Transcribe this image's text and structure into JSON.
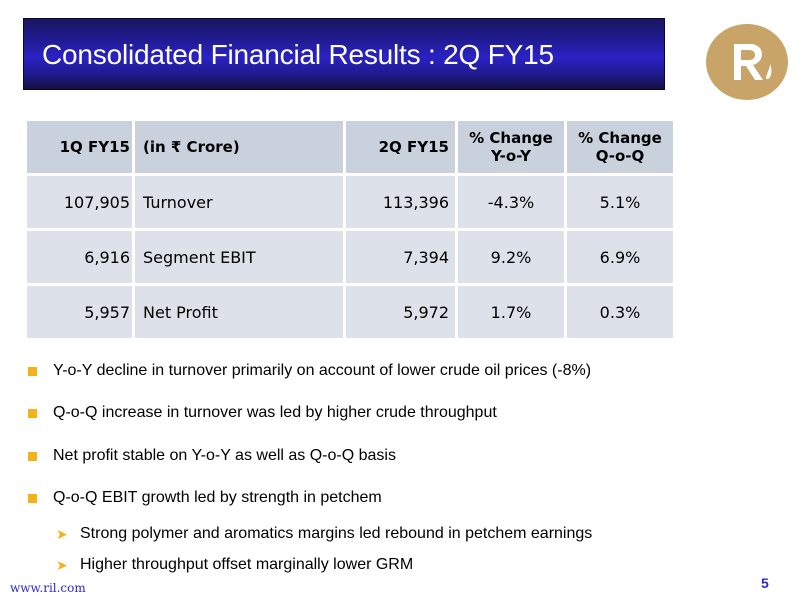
{
  "title": "Consolidated Financial Results : 2Q FY15",
  "logo": {
    "icon": "ril-logo-icon",
    "color": "#c8a468"
  },
  "table": {
    "headers": {
      "col1": "1Q FY15",
      "col2": "(in ₹ Crore)",
      "col3": "2Q FY15",
      "col4_line1": "% Change",
      "col4_line2": "Y-o-Y",
      "col5_line1": "% Change",
      "col5_line2": "Q-o-Q"
    },
    "rows": [
      {
        "q1": "107,905",
        "label": "Turnover",
        "q2": "113,396",
        "yoy": "-4.3%",
        "qoq": "5.1%"
      },
      {
        "q1": "6,916",
        "label": "Segment EBIT",
        "q2": "7,394",
        "yoy": "9.2%",
        "qoq": "6.9%"
      },
      {
        "q1": "5,957",
        "label": "Net Profit",
        "q2": "5,972",
        "yoy": "1.7%",
        "qoq": "0.3%"
      }
    ]
  },
  "bullets": [
    "Y-o-Y decline in turnover primarily on account of lower crude oil prices (-8%)",
    "Q-o-Q increase in turnover was led by higher crude throughput",
    "Net profit stable on Y-o-Y as well as Q-o-Q basis",
    "Q-o-Q EBIT growth led by strength in petchem"
  ],
  "sub_bullets": [
    "Strong polymer and aromatics margins led rebound in petchem earnings",
    "Higher throughput offset marginally lower GRM"
  ],
  "footer": {
    "url": "www.ril.com",
    "page": "5"
  },
  "colors": {
    "accent": "#f4b21a",
    "title_bar": "#2a22c4",
    "table_header": "#c9d1dd",
    "table_row": "#dde2ea"
  }
}
